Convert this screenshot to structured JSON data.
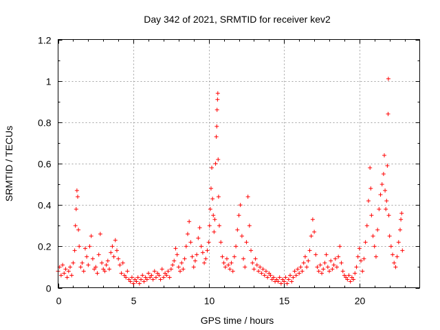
{
  "chart_data": {
    "type": "scatter",
    "title": "Day 342 of 2021, SRMTID for receiver kev2",
    "xlabel": "GPS time / hours",
    "ylabel": "SRMTID / TECUs",
    "xlim": [
      0,
      24
    ],
    "ylim": [
      0,
      1.2
    ],
    "grid": true,
    "marker": "+",
    "color": "#ff0000",
    "xticks": [
      0,
      5,
      10,
      15,
      20
    ],
    "xtick_labels": [
      "0",
      "5",
      "10",
      "15",
      "20"
    ],
    "yticks": [
      0,
      0.2,
      0.4,
      0.6,
      0.8,
      1,
      1.2
    ],
    "ytick_labels": [
      "0",
      "0.2",
      "0.4",
      "0.6",
      "0.8",
      "1",
      "1.2"
    ],
    "series": [
      {
        "name": "kev2",
        "points": [
          [
            0.0,
            0.08
          ],
          [
            0.1,
            0.1
          ],
          [
            0.2,
            0.06
          ],
          [
            0.3,
            0.11
          ],
          [
            0.4,
            0.07
          ],
          [
            0.5,
            0.09
          ],
          [
            0.6,
            0.05
          ],
          [
            0.7,
            0.08
          ],
          [
            0.8,
            0.1
          ],
          [
            0.9,
            0.06
          ],
          [
            1.0,
            0.12
          ],
          [
            1.1,
            0.18
          ],
          [
            1.15,
            0.3
          ],
          [
            1.2,
            0.38
          ],
          [
            1.25,
            0.47
          ],
          [
            1.3,
            0.44
          ],
          [
            1.35,
            0.28
          ],
          [
            1.4,
            0.2
          ],
          [
            1.5,
            0.1
          ],
          [
            1.6,
            0.12
          ],
          [
            1.7,
            0.08
          ],
          [
            1.8,
            0.19
          ],
          [
            1.9,
            0.15
          ],
          [
            2.0,
            0.11
          ],
          [
            2.1,
            0.2
          ],
          [
            2.2,
            0.25
          ],
          [
            2.3,
            0.14
          ],
          [
            2.4,
            0.09
          ],
          [
            2.5,
            0.1
          ],
          [
            2.6,
            0.07
          ],
          [
            2.7,
            0.16
          ],
          [
            2.8,
            0.26
          ],
          [
            2.9,
            0.12
          ],
          [
            3.0,
            0.09
          ],
          [
            3.1,
            0.08
          ],
          [
            3.2,
            0.11
          ],
          [
            3.3,
            0.13
          ],
          [
            3.4,
            0.09
          ],
          [
            3.5,
            0.17
          ],
          [
            3.6,
            0.2
          ],
          [
            3.7,
            0.15
          ],
          [
            3.8,
            0.23
          ],
          [
            3.9,
            0.18
          ],
          [
            4.0,
            0.14
          ],
          [
            4.1,
            0.11
          ],
          [
            4.2,
            0.07
          ],
          [
            4.3,
            0.12
          ],
          [
            4.4,
            0.06
          ],
          [
            4.5,
            0.05
          ],
          [
            4.6,
            0.08
          ],
          [
            4.7,
            0.04
          ],
          [
            4.8,
            0.03
          ],
          [
            4.9,
            0.05
          ],
          [
            5.0,
            0.02
          ],
          [
            5.1,
            0.04
          ],
          [
            5.2,
            0.03
          ],
          [
            5.3,
            0.05
          ],
          [
            5.4,
            0.02
          ],
          [
            5.5,
            0.04
          ],
          [
            5.6,
            0.06
          ],
          [
            5.7,
            0.03
          ],
          [
            5.8,
            0.05
          ],
          [
            5.9,
            0.04
          ],
          [
            6.0,
            0.07
          ],
          [
            6.1,
            0.05
          ],
          [
            6.2,
            0.06
          ],
          [
            6.3,
            0.04
          ],
          [
            6.4,
            0.08
          ],
          [
            6.5,
            0.05
          ],
          [
            6.6,
            0.07
          ],
          [
            6.7,
            0.06
          ],
          [
            6.8,
            0.04
          ],
          [
            6.9,
            0.09
          ],
          [
            7.0,
            0.05
          ],
          [
            7.1,
            0.07
          ],
          [
            7.2,
            0.06
          ],
          [
            7.3,
            0.08
          ],
          [
            7.4,
            0.05
          ],
          [
            7.5,
            0.09
          ],
          [
            7.6,
            0.11
          ],
          [
            7.7,
            0.13
          ],
          [
            7.8,
            0.19
          ],
          [
            7.9,
            0.16
          ],
          [
            8.0,
            0.1
          ],
          [
            8.1,
            0.08
          ],
          [
            8.2,
            0.12
          ],
          [
            8.3,
            0.09
          ],
          [
            8.4,
            0.14
          ],
          [
            8.5,
            0.2
          ],
          [
            8.6,
            0.26
          ],
          [
            8.7,
            0.32
          ],
          [
            8.8,
            0.22
          ],
          [
            8.9,
            0.15
          ],
          [
            9.0,
            0.1
          ],
          [
            9.1,
            0.13
          ],
          [
            9.2,
            0.16
          ],
          [
            9.3,
            0.24
          ],
          [
            9.4,
            0.29
          ],
          [
            9.5,
            0.2
          ],
          [
            9.6,
            0.17
          ],
          [
            9.7,
            0.12
          ],
          [
            9.8,
            0.14
          ],
          [
            9.9,
            0.18
          ],
          [
            10.0,
            0.22
          ],
          [
            10.05,
            0.3
          ],
          [
            10.1,
            0.38
          ],
          [
            10.15,
            0.48
          ],
          [
            10.2,
            0.58
          ],
          [
            10.25,
            0.43
          ],
          [
            10.3,
            0.35
          ],
          [
            10.35,
            0.27
          ],
          [
            10.4,
            0.33
          ],
          [
            10.45,
            0.6
          ],
          [
            10.5,
            0.73
          ],
          [
            10.53,
            0.78
          ],
          [
            10.55,
            0.86
          ],
          [
            10.58,
            0.91
          ],
          [
            10.6,
            0.94
          ],
          [
            10.62,
            0.62
          ],
          [
            10.65,
            0.44
          ],
          [
            10.7,
            0.3
          ],
          [
            10.8,
            0.22
          ],
          [
            10.9,
            0.15
          ],
          [
            11.0,
            0.12
          ],
          [
            11.1,
            0.1
          ],
          [
            11.2,
            0.14
          ],
          [
            11.3,
            0.11
          ],
          [
            11.4,
            0.09
          ],
          [
            11.5,
            0.12
          ],
          [
            11.6,
            0.08
          ],
          [
            11.7,
            0.15
          ],
          [
            11.8,
            0.2
          ],
          [
            11.9,
            0.28
          ],
          [
            12.0,
            0.35
          ],
          [
            12.1,
            0.4
          ],
          [
            12.2,
            0.25
          ],
          [
            12.3,
            0.14
          ],
          [
            12.4,
            0.1
          ],
          [
            12.5,
            0.22
          ],
          [
            12.6,
            0.44
          ],
          [
            12.7,
            0.3
          ],
          [
            12.8,
            0.18
          ],
          [
            12.9,
            0.12
          ],
          [
            13.0,
            0.09
          ],
          [
            13.1,
            0.14
          ],
          [
            13.2,
            0.11
          ],
          [
            13.3,
            0.08
          ],
          [
            13.4,
            0.1
          ],
          [
            13.5,
            0.07
          ],
          [
            13.6,
            0.09
          ],
          [
            13.7,
            0.06
          ],
          [
            13.8,
            0.08
          ],
          [
            13.9,
            0.05
          ],
          [
            14.0,
            0.07
          ],
          [
            14.1,
            0.06
          ],
          [
            14.2,
            0.04
          ],
          [
            14.3,
            0.05
          ],
          [
            14.4,
            0.03
          ],
          [
            14.5,
            0.04
          ],
          [
            14.6,
            0.03
          ],
          [
            14.7,
            0.05
          ],
          [
            14.8,
            0.02
          ],
          [
            14.9,
            0.04
          ],
          [
            15.0,
            0.03
          ],
          [
            15.1,
            0.05
          ],
          [
            15.2,
            0.02
          ],
          [
            15.3,
            0.04
          ],
          [
            15.4,
            0.06
          ],
          [
            15.5,
            0.03
          ],
          [
            15.6,
            0.05
          ],
          [
            15.7,
            0.08
          ],
          [
            15.8,
            0.06
          ],
          [
            15.9,
            0.09
          ],
          [
            16.0,
            0.07
          ],
          [
            16.1,
            0.1
          ],
          [
            16.2,
            0.08
          ],
          [
            16.3,
            0.12
          ],
          [
            16.4,
            0.15
          ],
          [
            16.5,
            0.1
          ],
          [
            16.6,
            0.13
          ],
          [
            16.7,
            0.18
          ],
          [
            16.8,
            0.25
          ],
          [
            16.9,
            0.33
          ],
          [
            17.0,
            0.27
          ],
          [
            17.1,
            0.16
          ],
          [
            17.2,
            0.1
          ],
          [
            17.3,
            0.08
          ],
          [
            17.4,
            0.11
          ],
          [
            17.5,
            0.07
          ],
          [
            17.6,
            0.09
          ],
          [
            17.7,
            0.12
          ],
          [
            17.8,
            0.16
          ],
          [
            17.9,
            0.1
          ],
          [
            18.0,
            0.08
          ],
          [
            18.1,
            0.13
          ],
          [
            18.2,
            0.09
          ],
          [
            18.3,
            0.11
          ],
          [
            18.4,
            0.14
          ],
          [
            18.5,
            0.1
          ],
          [
            18.6,
            0.15
          ],
          [
            18.7,
            0.2
          ],
          [
            18.8,
            0.12
          ],
          [
            18.9,
            0.08
          ],
          [
            19.0,
            0.06
          ],
          [
            19.1,
            0.05
          ],
          [
            19.2,
            0.04
          ],
          [
            19.3,
            0.06
          ],
          [
            19.4,
            0.03
          ],
          [
            19.5,
            0.05
          ],
          [
            19.6,
            0.04
          ],
          [
            19.7,
            0.07
          ],
          [
            19.8,
            0.1
          ],
          [
            19.9,
            0.15
          ],
          [
            20.0,
            0.19
          ],
          [
            20.1,
            0.13
          ],
          [
            20.2,
            0.08
          ],
          [
            20.3,
            0.14
          ],
          [
            20.4,
            0.22
          ],
          [
            20.5,
            0.3
          ],
          [
            20.6,
            0.42
          ],
          [
            20.7,
            0.58
          ],
          [
            20.75,
            0.48
          ],
          [
            20.8,
            0.35
          ],
          [
            20.9,
            0.25
          ],
          [
            21.0,
            0.2
          ],
          [
            21.1,
            0.15
          ],
          [
            21.2,
            0.28
          ],
          [
            21.3,
            0.38
          ],
          [
            21.4,
            0.45
          ],
          [
            21.5,
            0.5
          ],
          [
            21.6,
            0.55
          ],
          [
            21.65,
            0.64
          ],
          [
            21.7,
            0.47
          ],
          [
            21.75,
            0.38
          ],
          [
            21.8,
            0.42
          ],
          [
            21.85,
            0.59
          ],
          [
            21.9,
            0.84
          ],
          [
            21.92,
            1.01
          ],
          [
            21.95,
            0.35
          ],
          [
            22.0,
            0.25
          ],
          [
            22.1,
            0.2
          ],
          [
            22.2,
            0.16
          ],
          [
            22.3,
            0.12
          ],
          [
            22.4,
            0.1
          ],
          [
            22.5,
            0.15
          ],
          [
            22.6,
            0.22
          ],
          [
            22.7,
            0.28
          ],
          [
            22.75,
            0.33
          ],
          [
            22.8,
            0.36
          ],
          [
            22.85,
            0.18
          ]
        ]
      }
    ]
  }
}
